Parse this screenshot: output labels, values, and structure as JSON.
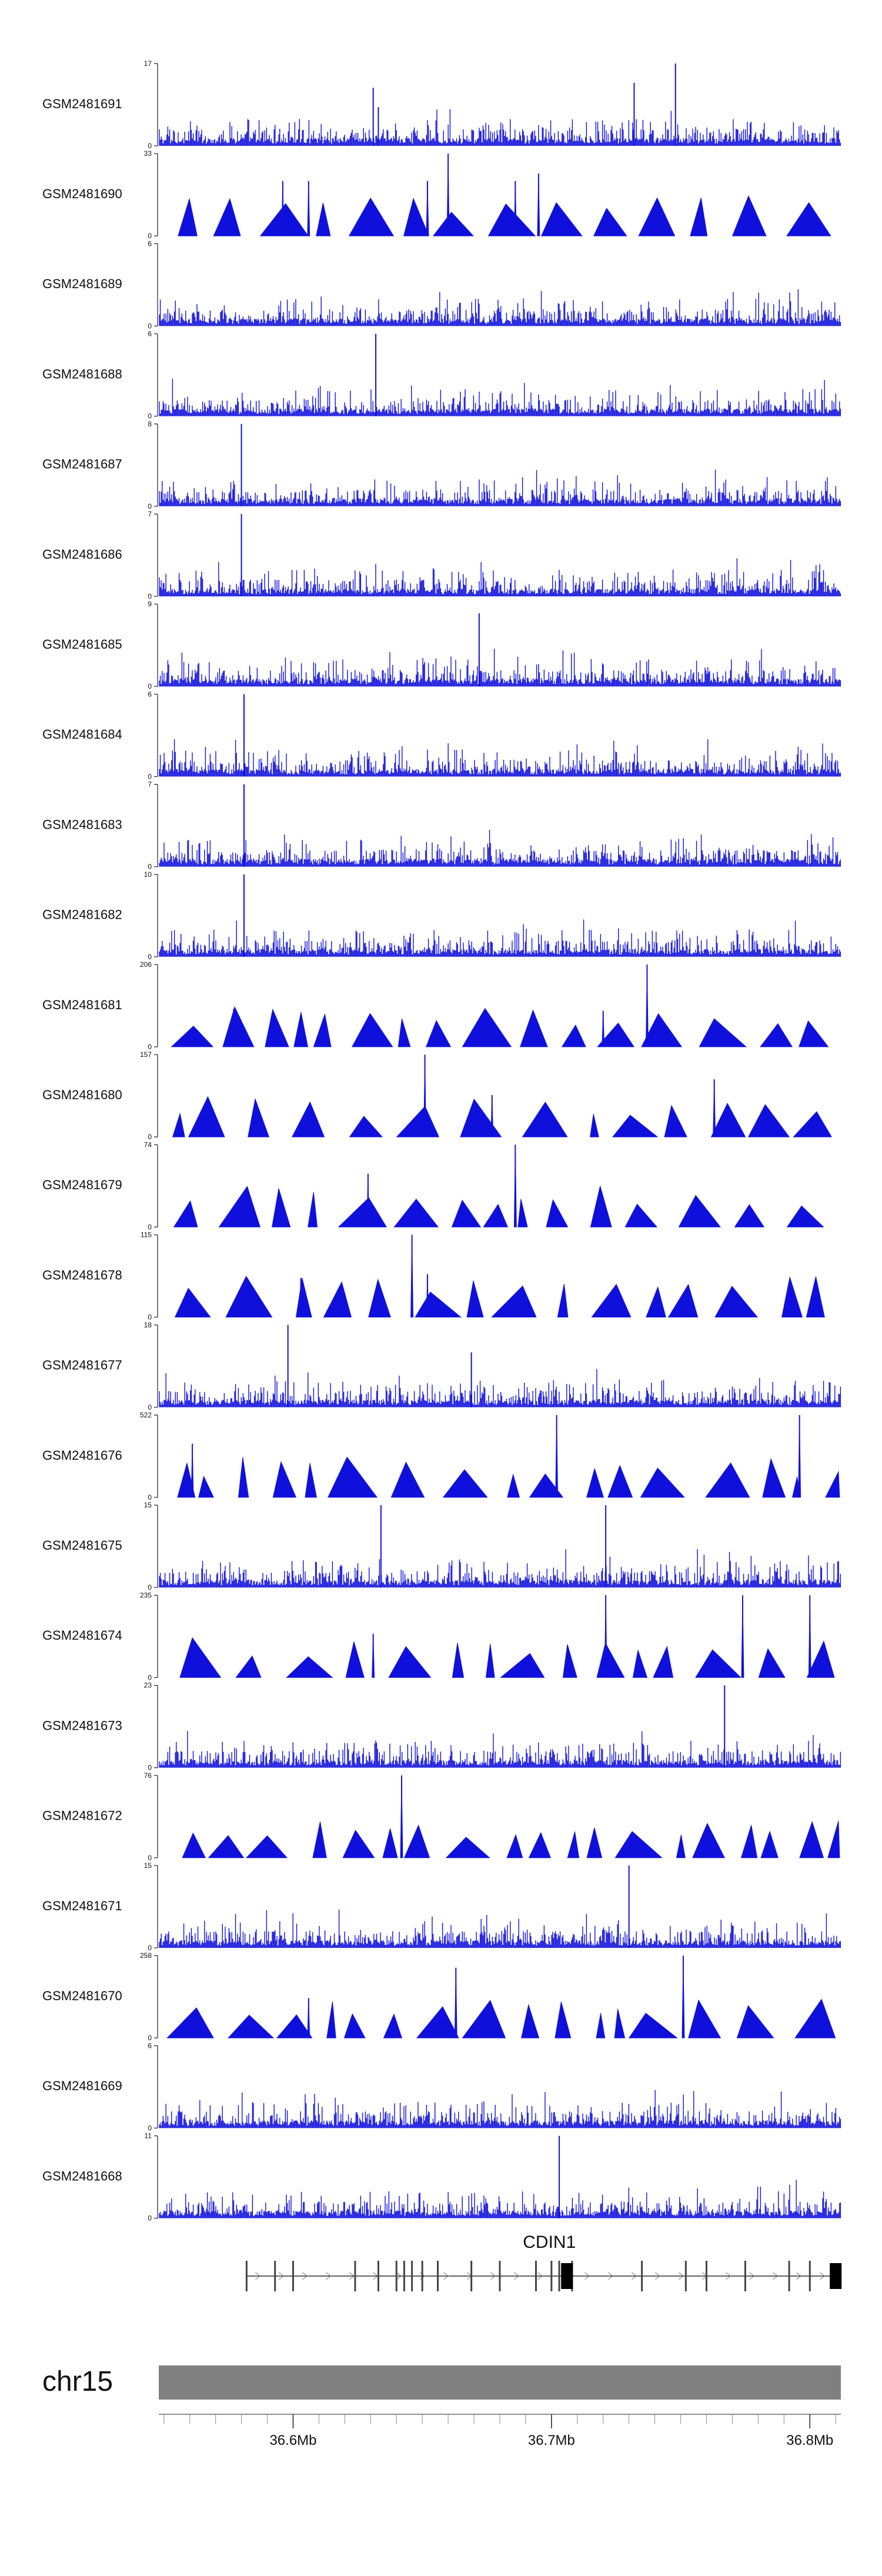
{
  "chart_data": {
    "type": "area",
    "title": "",
    "colors": {
      "signal": "#1010dd",
      "axis": "#222222",
      "chrom_bar": "#808080",
      "gene": "#000000"
    },
    "chromosome": "chr15",
    "xlim_mb": [
      36.548,
      36.812
    ],
    "x_ticks": [
      {
        "value": 36.6,
        "label": "36.6Mb"
      },
      {
        "value": 36.7,
        "label": "36.7Mb"
      },
      {
        "value": 36.8,
        "label": "36.8Mb"
      }
    ],
    "gene": {
      "name": "CDIN1",
      "start_mb": 36.582,
      "end_mb": 36.812,
      "exons_mb": [
        36.582,
        36.593,
        36.6,
        36.624,
        36.633,
        36.64,
        36.643,
        36.646,
        36.65,
        36.656,
        36.669,
        36.68,
        36.694,
        36.7,
        36.703,
        36.708,
        36.735,
        36.752,
        36.76,
        36.775,
        36.792,
        36.8
      ],
      "coding_exons_mb": [
        36.706,
        36.81
      ]
    },
    "tracks": [
      {
        "name": "GSM2481691",
        "ymax": 17,
        "style": "bars",
        "peaks": [
          [
            36.631,
            12
          ],
          [
            36.633,
            8
          ],
          [
            36.748,
            17
          ],
          [
            36.732,
            13
          ]
        ]
      },
      {
        "name": "GSM2481690",
        "ymax": 33,
        "style": "triangles",
        "peaks": [
          [
            36.596,
            22
          ],
          [
            36.606,
            22
          ],
          [
            36.66,
            33
          ],
          [
            36.686,
            22
          ],
          [
            36.695,
            25
          ],
          [
            36.652,
            22
          ]
        ]
      },
      {
        "name": "GSM2481689",
        "ymax": 6,
        "style": "bars",
        "peaks": []
      },
      {
        "name": "GSM2481688",
        "ymax": 6,
        "style": "bars",
        "peaks": [
          [
            36.632,
            6
          ]
        ]
      },
      {
        "name": "GSM2481687",
        "ymax": 8,
        "style": "bars",
        "peaks": [
          [
            36.58,
            8
          ]
        ]
      },
      {
        "name": "GSM2481686",
        "ymax": 7,
        "style": "bars",
        "peaks": [
          [
            36.58,
            7
          ]
        ]
      },
      {
        "name": "GSM2481685",
        "ymax": 9,
        "style": "bars",
        "peaks": [
          [
            36.672,
            8
          ]
        ]
      },
      {
        "name": "GSM2481684",
        "ymax": 6,
        "style": "bars",
        "peaks": [
          [
            36.581,
            6
          ]
        ]
      },
      {
        "name": "GSM2481683",
        "ymax": 7,
        "style": "bars",
        "peaks": [
          [
            36.581,
            7
          ]
        ]
      },
      {
        "name": "GSM2481682",
        "ymax": 10,
        "style": "bars",
        "peaks": [
          [
            36.581,
            10
          ]
        ]
      },
      {
        "name": "GSM2481681",
        "ymax": 206,
        "style": "triangles",
        "peaks": [
          [
            36.737,
            206
          ],
          [
            36.72,
            90
          ],
          [
            36.577,
            95
          ]
        ]
      },
      {
        "name": "GSM2481680",
        "ymax": 157,
        "style": "triangles",
        "peaks": [
          [
            36.651,
            157
          ],
          [
            36.763,
            110
          ],
          [
            36.677,
            80
          ]
        ]
      },
      {
        "name": "GSM2481679",
        "ymax": 74,
        "style": "triangles",
        "peaks": [
          [
            36.686,
            74
          ],
          [
            36.629,
            48
          ]
        ]
      },
      {
        "name": "GSM2481678",
        "ymax": 115,
        "style": "triangles",
        "peaks": [
          [
            36.646,
            115
          ],
          [
            36.603,
            55
          ],
          [
            36.652,
            60
          ]
        ]
      },
      {
        "name": "GSM2481677",
        "ymax": 18,
        "style": "bars",
        "peaks": [
          [
            36.598,
            18
          ],
          [
            36.669,
            12
          ]
        ]
      },
      {
        "name": "GSM2481676",
        "ymax": 522,
        "style": "triangles",
        "peaks": [
          [
            36.702,
            522
          ],
          [
            36.561,
            340
          ],
          [
            36.796,
            522
          ]
        ]
      },
      {
        "name": "GSM2481675",
        "ymax": 15,
        "style": "bars",
        "peaks": [
          [
            36.634,
            15
          ],
          [
            36.721,
            15
          ]
        ]
      },
      {
        "name": "GSM2481674",
        "ymax": 235,
        "style": "triangles",
        "peaks": [
          [
            36.721,
            235
          ],
          [
            36.774,
            235
          ],
          [
            36.8,
            235
          ],
          [
            36.631,
            125
          ]
        ]
      },
      {
        "name": "GSM2481673",
        "ymax": 23,
        "style": "bars",
        "peaks": [
          [
            36.767,
            23
          ]
        ]
      },
      {
        "name": "GSM2481672",
        "ymax": 76,
        "style": "triangles",
        "peaks": [
          [
            36.642,
            76
          ]
        ]
      },
      {
        "name": "GSM2481671",
        "ymax": 15,
        "style": "bars",
        "peaks": [
          [
            36.73,
            15
          ]
        ]
      },
      {
        "name": "GSM2481670",
        "ymax": 258,
        "style": "triangles",
        "peaks": [
          [
            36.751,
            258
          ],
          [
            36.663,
            220
          ],
          [
            36.606,
            125
          ]
        ]
      },
      {
        "name": "GSM2481669",
        "ymax": 6,
        "style": "bars",
        "peaks": []
      },
      {
        "name": "GSM2481668",
        "ymax": 11,
        "style": "bars",
        "peaks": [
          [
            36.703,
            11
          ]
        ]
      }
    ]
  }
}
